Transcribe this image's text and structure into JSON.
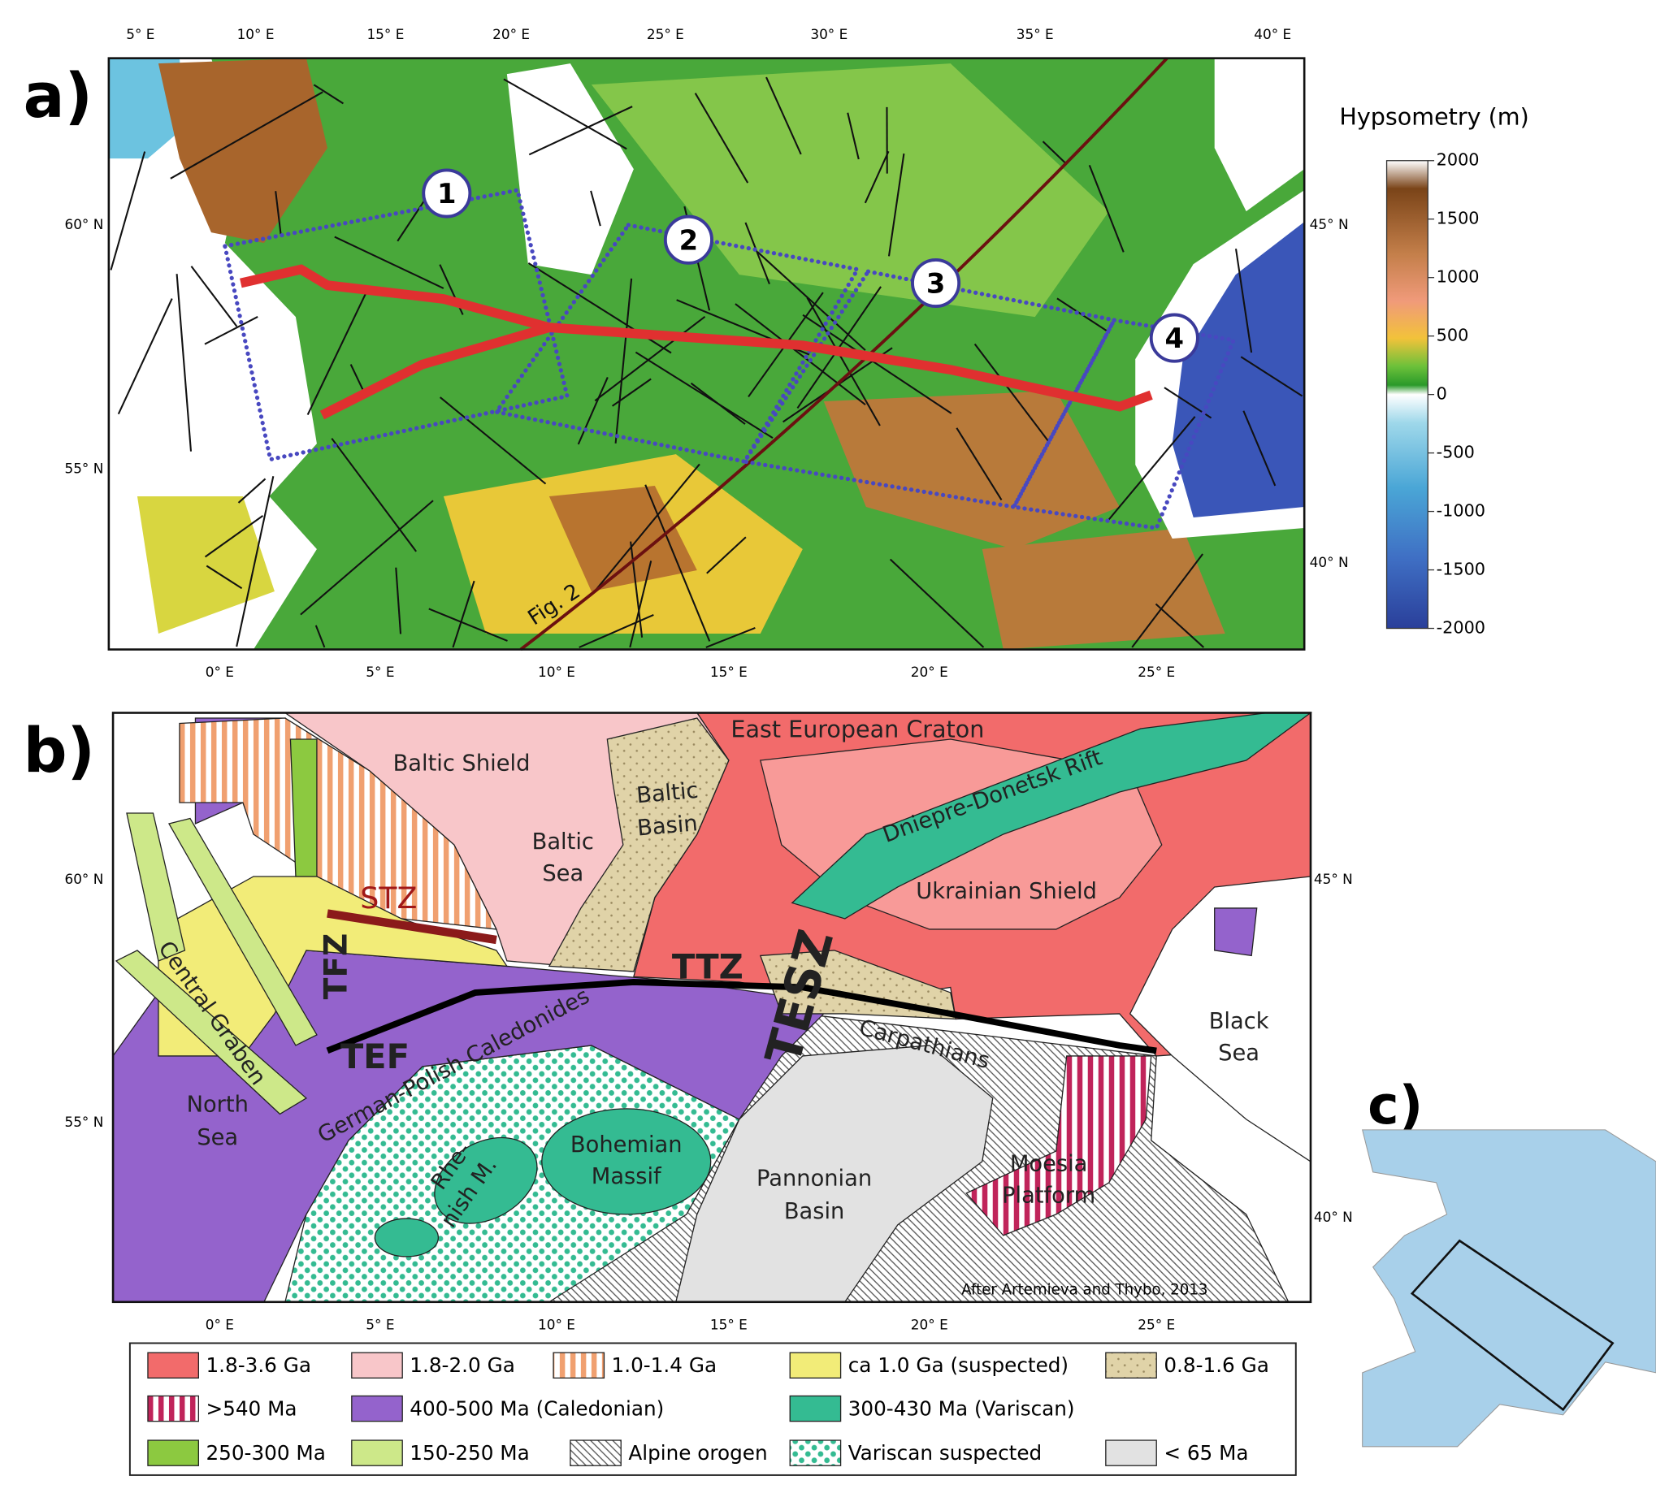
{
  "panel_a": {
    "label": "a)",
    "top_labels": [
      "5° E",
      "10° E",
      "15° E",
      "20° E",
      "25° E",
      "30° E",
      "35° E",
      "40° E"
    ],
    "bottom_labels": [
      "0° E",
      "5° E",
      "10° E",
      "15° E",
      "20° E",
      "25° E"
    ],
    "left_labels": [
      "60° N",
      "55° N"
    ],
    "right_labels": [
      "45° N",
      "40° N"
    ],
    "profiles": [
      "1",
      "2",
      "3",
      "4"
    ],
    "profile_note": "Fig. 2",
    "colorbar": {
      "title": "Hypsometry (m)",
      "ticks": [
        2000,
        1500,
        1000,
        500,
        0,
        -500,
        -1000,
        -1500,
        -2000
      ]
    }
  },
  "panel_b": {
    "label": "b)",
    "regions": [
      [
        "East European Craton"
      ],
      [
        "Baltic Shield"
      ],
      [
        "Baltic",
        "Sea"
      ],
      [
        "Baltic",
        "Basin"
      ],
      [
        "Dniepre-Donetsk Rift"
      ],
      [
        "Ukrainian Shield"
      ],
      [
        "STZ"
      ],
      [
        "TFZ"
      ],
      [
        "TTZ"
      ],
      [
        "TESZ"
      ],
      [
        "Central Graben"
      ],
      [
        "TEF"
      ],
      [
        "German-Polish Caledonides"
      ],
      [
        "Carpathians"
      ],
      [
        "Black",
        "Sea"
      ],
      [
        "North",
        "Sea"
      ],
      [
        "Bohemian",
        "Massif"
      ],
      [
        "Rhe-",
        "nish M."
      ],
      [
        "Pannonian",
        "Basin"
      ],
      [
        "Moesia",
        "Platform"
      ]
    ],
    "bottom_labels": [
      "0° E",
      "5° E",
      "10° E",
      "15° E",
      "20° E",
      "25° E"
    ],
    "left_labels": [
      "60° N",
      "55° N"
    ],
    "right_labels": [
      "45° N",
      "40° N"
    ],
    "credit": "After Artemieva and Thybo, 2013",
    "legend": [
      {
        "label": "1.8-3.6 Ga",
        "color": "#f26b6b"
      },
      {
        "label": "1.8-2.0 Ga",
        "color": "#f8c6c9"
      },
      {
        "label": "1.0-1.4 Ga",
        "color": "#f0a070",
        "pattern": "stripes"
      },
      {
        "label": "ca 1.0 Ga (suspected)",
        "color": "#f2ec78"
      },
      {
        "label": "0.8-1.6 Ga",
        "color": "#e0d3a8",
        "pattern": "dots"
      },
      {
        "label": ">540 Ma",
        "color": "#c0245a",
        "pattern": "stripes"
      },
      {
        "label": "400-500 Ma (Caledonian)",
        "color": "#9463cc"
      },
      {
        "label": "300-430 Ma (Variscan)",
        "color": "#34bb92"
      },
      {
        "label": "250-300 Ma",
        "color": "#8cc940"
      },
      {
        "label": "150-250 Ma",
        "color": "#cde889"
      },
      {
        "label": "Alpine orogen",
        "color": "#555555",
        "pattern": "hatch"
      },
      {
        "label": "Variscan suspected",
        "color": "#34bb92",
        "pattern": "dots"
      },
      {
        "label": "< 65 Ma",
        "color": "#e2e2e2"
      }
    ]
  },
  "panel_c": {
    "label": "c)"
  }
}
